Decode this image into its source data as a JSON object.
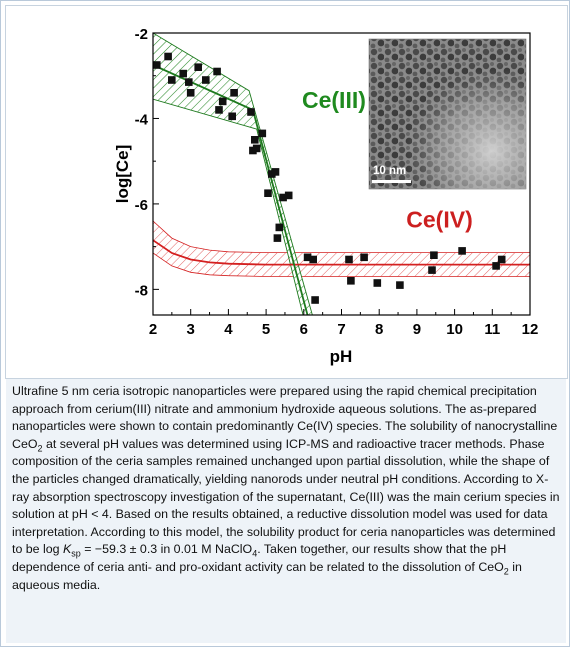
{
  "colors": {
    "ce3_line": "#1e7a1e",
    "ce3_label": "#1f8a1f",
    "ce4_line": "#d42020",
    "ce4_label": "#cc1f1f",
    "points": "#111111",
    "caption_bg": "#eef3f8"
  },
  "chart_data": {
    "type": "scatter",
    "xlabel": "pH",
    "ylabel": "log[Ce]",
    "xlim": [
      2,
      12
    ],
    "ylim": [
      -8.6,
      -2
    ],
    "x_ticks": [
      2,
      3,
      4,
      5,
      6,
      7,
      8,
      9,
      10,
      11,
      12
    ],
    "y_ticks": [
      -2,
      -4,
      -6,
      -8
    ],
    "grid": false,
    "annotations": [
      {
        "text": "Ce(III)",
        "x": 6.8,
        "y": -3.75,
        "color": "#1f8a1f"
      },
      {
        "text": "Ce(IV)",
        "x": 9.6,
        "y": -6.55,
        "color": "#cc1f1f"
      }
    ],
    "points": [
      {
        "x": 2.1,
        "y": -2.75
      },
      {
        "x": 2.4,
        "y": -2.55
      },
      {
        "x": 2.5,
        "y": -3.1
      },
      {
        "x": 2.8,
        "y": -2.95
      },
      {
        "x": 2.95,
        "y": -3.15
      },
      {
        "x": 3.0,
        "y": -3.4
      },
      {
        "x": 3.2,
        "y": -2.8
      },
      {
        "x": 3.4,
        "y": -3.1
      },
      {
        "x": 3.7,
        "y": -2.9
      },
      {
        "x": 3.75,
        "y": -3.8
      },
      {
        "x": 3.85,
        "y": -3.6
      },
      {
        "x": 4.1,
        "y": -3.95
      },
      {
        "x": 4.15,
        "y": -3.4
      },
      {
        "x": 4.6,
        "y": -3.85
      },
      {
        "x": 4.65,
        "y": -4.75
      },
      {
        "x": 4.7,
        "y": -4.5
      },
      {
        "x": 4.75,
        "y": -4.7
      },
      {
        "x": 4.9,
        "y": -4.35
      },
      {
        "x": 5.05,
        "y": -5.75
      },
      {
        "x": 5.15,
        "y": -5.3
      },
      {
        "x": 5.25,
        "y": -5.25
      },
      {
        "x": 5.3,
        "y": -6.8
      },
      {
        "x": 5.35,
        "y": -6.55
      },
      {
        "x": 5.45,
        "y": -5.85
      },
      {
        "x": 5.6,
        "y": -5.8
      },
      {
        "x": 6.1,
        "y": -7.25
      },
      {
        "x": 6.25,
        "y": -7.3
      },
      {
        "x": 6.3,
        "y": -8.25
      },
      {
        "x": 7.2,
        "y": -7.3
      },
      {
        "x": 7.25,
        "y": -7.8
      },
      {
        "x": 7.6,
        "y": -7.25
      },
      {
        "x": 7.95,
        "y": -7.85
      },
      {
        "x": 8.55,
        "y": -7.9
      },
      {
        "x": 9.4,
        "y": -7.55
      },
      {
        "x": 9.45,
        "y": -7.2
      },
      {
        "x": 10.2,
        "y": -7.1
      },
      {
        "x": 11.1,
        "y": -7.45
      },
      {
        "x": 11.25,
        "y": -7.3
      }
    ],
    "ce3_fit": [
      {
        "x": 2,
        "y": -2.75
      },
      {
        "x": 4.65,
        "y": -3.8
      },
      {
        "x": 6.25,
        "y": -9.1
      }
    ],
    "ce3_band_upper": [
      {
        "x": 2,
        "y": -2.0
      },
      {
        "x": 4.55,
        "y": -3.35
      },
      {
        "x": 6.45,
        "y": -9.3
      }
    ],
    "ce3_band_lower": [
      {
        "x": 2,
        "y": -3.55
      },
      {
        "x": 4.75,
        "y": -4.25
      },
      {
        "x": 6.05,
        "y": -8.85
      }
    ],
    "ce4_fit": [
      {
        "x": 2,
        "y": -6.85
      },
      {
        "x": 2.5,
        "y": -7.15
      },
      {
        "x": 3,
        "y": -7.3
      },
      {
        "x": 3.5,
        "y": -7.37
      },
      {
        "x": 4,
        "y": -7.4
      },
      {
        "x": 5,
        "y": -7.42
      },
      {
        "x": 12,
        "y": -7.42
      }
    ],
    "ce4_band_upper": [
      {
        "x": 2,
        "y": -6.4
      },
      {
        "x": 2.5,
        "y": -6.8
      },
      {
        "x": 3,
        "y": -7.0
      },
      {
        "x": 3.5,
        "y": -7.08
      },
      {
        "x": 4,
        "y": -7.12
      },
      {
        "x": 5,
        "y": -7.14
      },
      {
        "x": 12,
        "y": -7.14
      }
    ],
    "ce4_band_lower": [
      {
        "x": 2,
        "y": -7.15
      },
      {
        "x": 2.5,
        "y": -7.45
      },
      {
        "x": 3,
        "y": -7.6
      },
      {
        "x": 3.5,
        "y": -7.66
      },
      {
        "x": 4,
        "y": -7.68
      },
      {
        "x": 5,
        "y": -7.7
      },
      {
        "x": 12,
        "y": -7.7
      }
    ]
  },
  "inset": {
    "scale_label": "10 nm"
  },
  "caption": {
    "p1": "Ultrafine 5 nm ceria isotropic nanoparticles were prepared using the rapid chemical precipitation approach from cerium(III) nitrate and ammonium hydroxide aqueous solutions. The as-prepared nanoparticles were shown to contain predominantly Ce(IV) species. The solubility of nanocrystalline CeO",
    "sub1": "2",
    "p2": " at several pH values was determined using ICP-MS and radioactive tracer methods. Phase composition of the ceria samples remained unchanged upon partial dissolution, while the shape of the particles changed dramatically, yielding nanorods under neutral pH conditions. According to X-ray absorption spectroscopy investigation of the supernatant, Ce(III) was the main cerium species in solution at pH < 4. Based on the results obtained, a reductive dissolution model was used for data interpretation. According to this model, the solubility product for ceria nanoparticles was determined to be log ",
    "k": "K",
    "ksub": "sp",
    "p3": " = −59.3 ± 0.3 in 0.01 M NaClO",
    "sub4": "4",
    "p4": ". Taken together, our results show that the pH dependence of ceria anti- and pro-oxidant activity can be related to the dissolution of CeO",
    "sub5": "2",
    "p5": " in aqueous media."
  }
}
